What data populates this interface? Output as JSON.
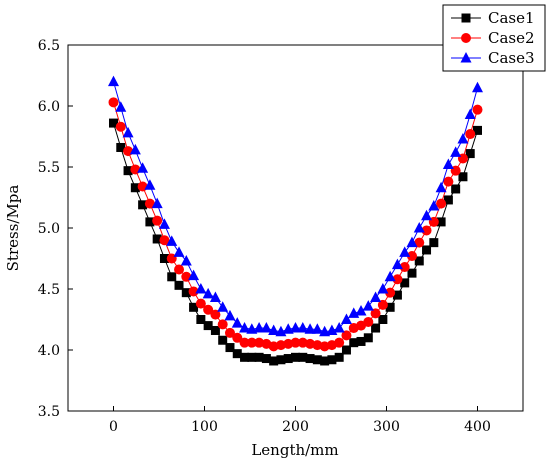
{
  "chart_data": {
    "type": "line",
    "xlabel": "Length/mm",
    "ylabel": "Stress/Mpa",
    "xlim": [
      -50,
      450
    ],
    "ylim": [
      3.5,
      6.5
    ],
    "xticks": [
      0,
      100,
      200,
      300,
      400
    ],
    "yticks": [
      3.5,
      4.0,
      4.5,
      5.0,
      5.5,
      6.0,
      6.5
    ],
    "grid": false,
    "legend_position": "top-right",
    "x": [
      0,
      8,
      16,
      24,
      32,
      40,
      48,
      56,
      64,
      72,
      80,
      88,
      96,
      104,
      112,
      120,
      128,
      136,
      144,
      152,
      160,
      168,
      176,
      184,
      192,
      200,
      208,
      216,
      224,
      232,
      240,
      248,
      256,
      264,
      272,
      280,
      288,
      296,
      304,
      312,
      320,
      328,
      336,
      344,
      352,
      360,
      368,
      376,
      384,
      392,
      400
    ],
    "series": [
      {
        "name": "Case1",
        "color": "#000000",
        "marker": "square",
        "values": [
          5.86,
          5.66,
          5.47,
          5.33,
          5.19,
          5.05,
          4.91,
          4.75,
          4.6,
          4.53,
          4.47,
          4.35,
          4.25,
          4.2,
          4.16,
          4.08,
          4.02,
          3.97,
          3.94,
          3.94,
          3.94,
          3.93,
          3.91,
          3.92,
          3.93,
          3.94,
          3.94,
          3.93,
          3.92,
          3.91,
          3.92,
          3.94,
          4.0,
          4.06,
          4.07,
          4.1,
          4.18,
          4.25,
          4.35,
          4.45,
          4.55,
          4.63,
          4.73,
          4.82,
          4.88,
          5.05,
          5.23,
          5.32,
          5.42,
          5.61,
          5.8
        ]
      },
      {
        "name": "Case2",
        "color": "#ff0000",
        "marker": "circle",
        "values": [
          6.03,
          5.83,
          5.63,
          5.48,
          5.34,
          5.2,
          5.06,
          4.9,
          4.75,
          4.66,
          4.6,
          4.48,
          4.38,
          4.33,
          4.29,
          4.21,
          4.14,
          4.1,
          4.06,
          4.06,
          4.06,
          4.05,
          4.03,
          4.04,
          4.05,
          4.06,
          4.06,
          4.05,
          4.04,
          4.03,
          4.04,
          4.06,
          4.12,
          4.18,
          4.2,
          4.23,
          4.3,
          4.37,
          4.47,
          4.58,
          4.68,
          4.77,
          4.88,
          4.98,
          5.05,
          5.2,
          5.38,
          5.47,
          5.57,
          5.77,
          5.97
        ]
      },
      {
        "name": "Case3",
        "color": "#0000ff",
        "marker": "triangle",
        "values": [
          6.2,
          5.99,
          5.78,
          5.64,
          5.49,
          5.35,
          5.2,
          5.03,
          4.89,
          4.8,
          4.73,
          4.61,
          4.5,
          4.46,
          4.43,
          4.35,
          4.28,
          4.22,
          4.18,
          4.17,
          4.18,
          4.18,
          4.16,
          4.15,
          4.17,
          4.18,
          4.18,
          4.17,
          4.17,
          4.15,
          4.16,
          4.18,
          4.25,
          4.3,
          4.32,
          4.36,
          4.43,
          4.5,
          4.6,
          4.7,
          4.8,
          4.88,
          5.0,
          5.1,
          5.18,
          5.33,
          5.52,
          5.62,
          5.73,
          5.93,
          6.15
        ]
      }
    ]
  }
}
